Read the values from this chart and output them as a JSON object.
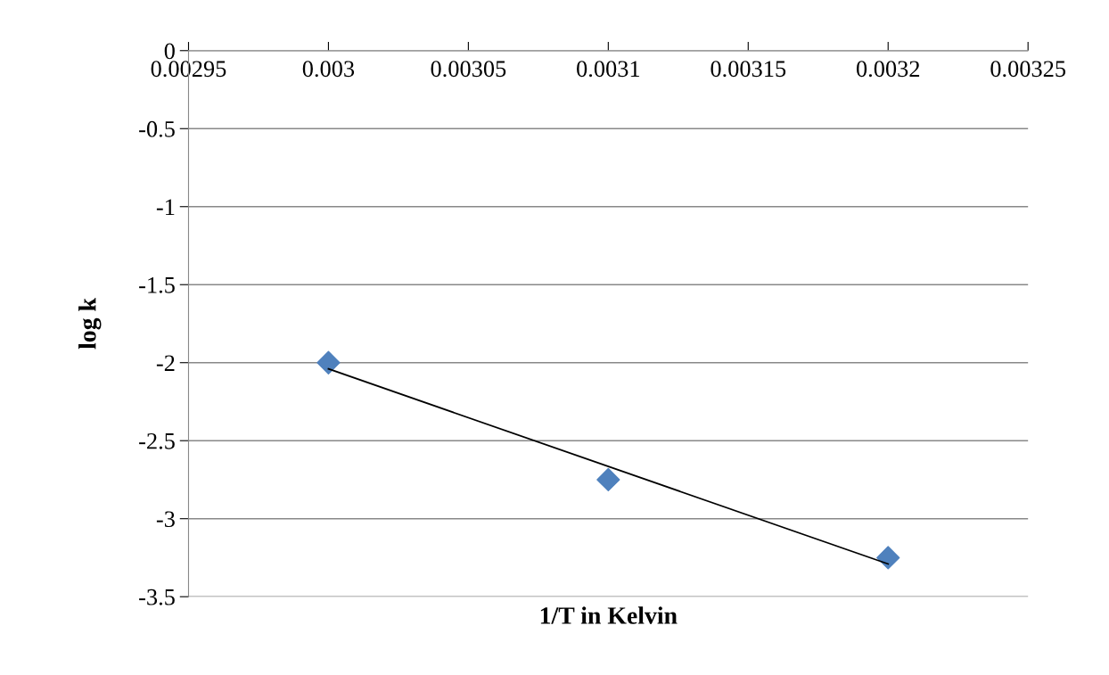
{
  "chart_data": {
    "type": "scatter",
    "xlabel": "1/T in Kelvin",
    "ylabel": "log k",
    "series": [
      {
        "color": "#4f81bd",
        "marker": "diamond",
        "x": [
          0.003,
          0.0031,
          0.0032
        ],
        "values": [
          -2,
          -2.75,
          -3.25
        ]
      },
      {
        "type": "line",
        "color": "#000000",
        "marker": "none",
        "line_style": "solid",
        "x": [
          0.003,
          0.0032
        ],
        "values": [
          -2.04,
          -3.29
        ]
      }
    ],
    "xlim": [
      0.00295,
      0.00325
    ],
    "xticks": [
      0.00295,
      0.003,
      0.00305,
      0.0031,
      0.00315,
      0.0032,
      0.00325
    ],
    "ylim": [
      -3.5,
      0
    ],
    "yticks": [
      0,
      -0.5,
      -1,
      -1.5,
      -2,
      -2.5,
      -3,
      -3.5
    ],
    "grid": "y",
    "legend": false
  }
}
